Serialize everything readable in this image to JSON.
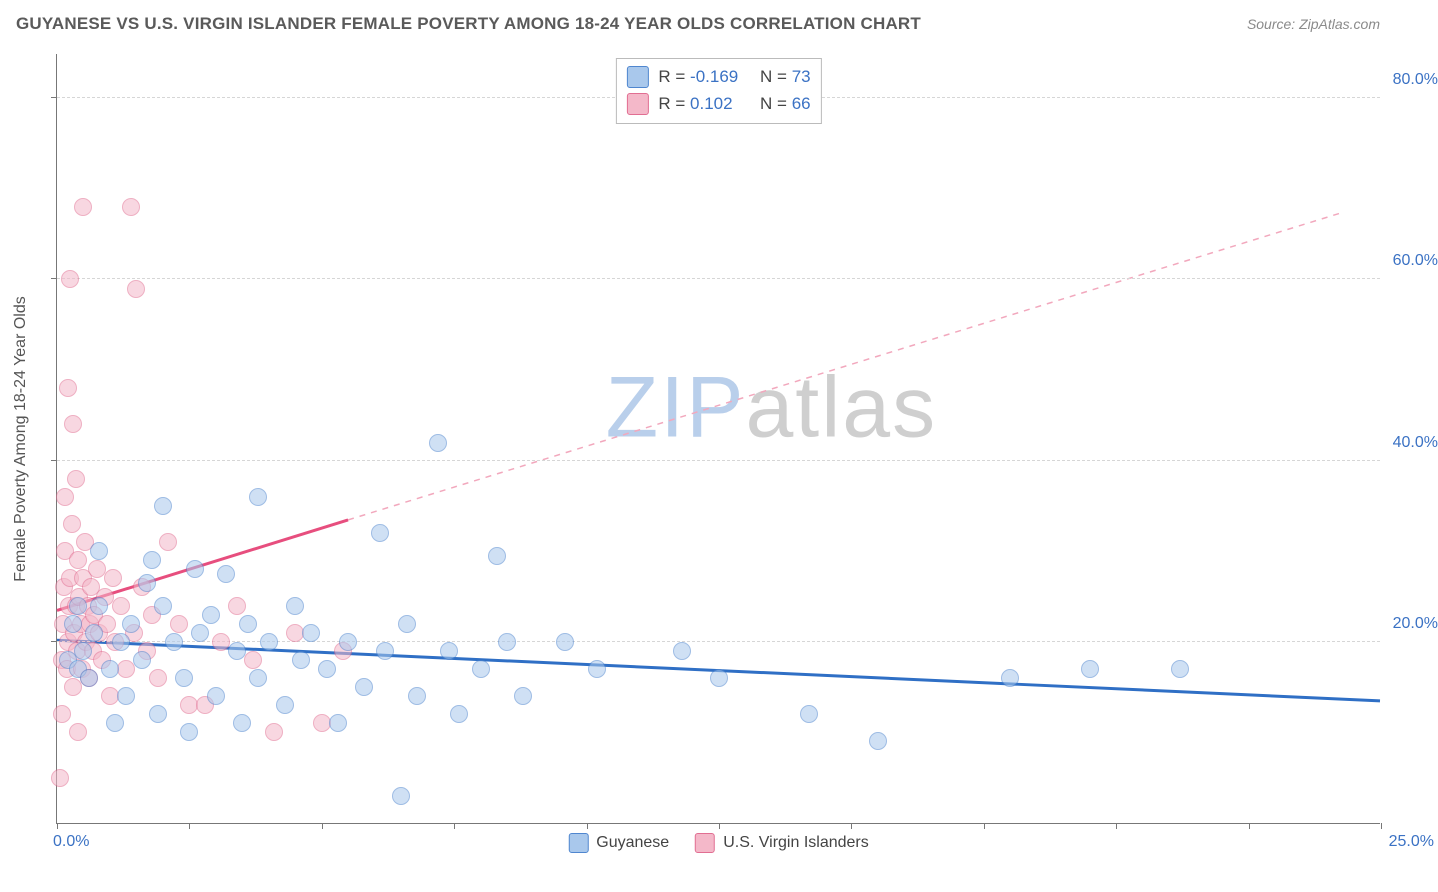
{
  "header": {
    "title": "GUYANESE VS U.S. VIRGIN ISLANDER FEMALE POVERTY AMONG 18-24 YEAR OLDS CORRELATION CHART",
    "source_prefix": "Source: ",
    "source_name": "ZipAtlas.com"
  },
  "chart": {
    "type": "scatter",
    "y_axis_title": "Female Poverty Among 18-24 Year Olds",
    "xlim": [
      0,
      25
    ],
    "ylim": [
      0,
      85
    ],
    "x_tick_step": 2.5,
    "x_min_label": "0.0%",
    "x_max_label": "25.0%",
    "y_ticks": [
      20,
      40,
      60,
      80
    ],
    "y_tick_labels": [
      "20.0%",
      "40.0%",
      "60.0%",
      "80.0%"
    ],
    "grid_color": "#d6d6d6",
    "axis_color": "#777777",
    "tick_label_color": "#3b72c4",
    "background_color": "#ffffff",
    "dot_radius": 9,
    "dot_border_width": 1.4,
    "watermark_text_parts": [
      "ZIP",
      "atlas"
    ],
    "watermark_colors": [
      "#b9cfeb",
      "#cfcfcf"
    ],
    "series": [
      {
        "name": "Guyanese",
        "fill": "#a9c8ec",
        "fill_opacity": 0.55,
        "stroke": "#4f86cf",
        "r_value": "-0.169",
        "n_value": "73",
        "trend": {
          "x1": 0,
          "y1": 20.2,
          "x2": 25,
          "y2": 13.5,
          "color": "#2f6fc5",
          "width": 3,
          "dash": "none"
        },
        "points": [
          [
            0.2,
            18
          ],
          [
            0.3,
            22
          ],
          [
            0.4,
            17
          ],
          [
            0.4,
            24
          ],
          [
            0.5,
            19
          ],
          [
            0.6,
            16
          ],
          [
            0.7,
            21
          ],
          [
            0.8,
            24
          ],
          [
            0.8,
            30
          ],
          [
            1.0,
            17
          ],
          [
            1.1,
            11
          ],
          [
            1.2,
            20
          ],
          [
            1.3,
            14
          ],
          [
            1.4,
            22
          ],
          [
            1.6,
            18
          ],
          [
            1.7,
            26.5
          ],
          [
            1.8,
            29
          ],
          [
            1.9,
            12
          ],
          [
            2.0,
            35
          ],
          [
            2.0,
            24
          ],
          [
            2.2,
            20
          ],
          [
            2.4,
            16
          ],
          [
            2.5,
            10
          ],
          [
            2.6,
            28
          ],
          [
            2.7,
            21
          ],
          [
            2.9,
            23
          ],
          [
            3.0,
            14
          ],
          [
            3.2,
            27.5
          ],
          [
            3.4,
            19
          ],
          [
            3.5,
            11
          ],
          [
            3.6,
            22
          ],
          [
            3.8,
            36
          ],
          [
            3.8,
            16
          ],
          [
            4.0,
            20
          ],
          [
            4.3,
            13
          ],
          [
            4.5,
            24
          ],
          [
            4.6,
            18
          ],
          [
            4.8,
            21
          ],
          [
            5.1,
            17
          ],
          [
            5.3,
            11
          ],
          [
            5.5,
            20
          ],
          [
            5.8,
            15
          ],
          [
            6.1,
            32
          ],
          [
            6.2,
            19
          ],
          [
            6.5,
            3
          ],
          [
            6.6,
            22
          ],
          [
            6.8,
            14
          ],
          [
            7.2,
            42
          ],
          [
            7.4,
            19
          ],
          [
            7.6,
            12
          ],
          [
            8.0,
            17
          ],
          [
            8.3,
            29.5
          ],
          [
            8.5,
            20
          ],
          [
            8.8,
            14
          ],
          [
            9.6,
            20
          ],
          [
            10.2,
            17
          ],
          [
            11.8,
            19
          ],
          [
            12.5,
            16
          ],
          [
            14.2,
            12
          ],
          [
            15.5,
            9
          ],
          [
            18.0,
            16
          ],
          [
            19.5,
            17
          ],
          [
            21.2,
            17
          ]
        ]
      },
      {
        "name": "U.S. Virgin Islanders",
        "fill": "#f4b8c9",
        "fill_opacity": 0.55,
        "stroke": "#e16e92",
        "r_value": "0.102",
        "n_value": "66",
        "trend_solid": {
          "x1": 0,
          "y1": 23.5,
          "x2": 5.5,
          "y2": 33.5,
          "color": "#e74e7e",
          "width": 3
        },
        "trend_dash": {
          "x1": 5.5,
          "y1": 33.5,
          "x2": 24.3,
          "y2": 67.5,
          "color": "#f2a8bd",
          "width": 1.5
        },
        "points": [
          [
            0.05,
            5
          ],
          [
            0.1,
            12
          ],
          [
            0.1,
            18
          ],
          [
            0.12,
            22
          ],
          [
            0.14,
            26
          ],
          [
            0.15,
            30
          ],
          [
            0.15,
            36
          ],
          [
            0.18,
            17
          ],
          [
            0.2,
            48
          ],
          [
            0.2,
            20
          ],
          [
            0.22,
            24
          ],
          [
            0.25,
            60
          ],
          [
            0.25,
            27
          ],
          [
            0.28,
            33
          ],
          [
            0.3,
            15
          ],
          [
            0.3,
            44
          ],
          [
            0.32,
            21
          ],
          [
            0.35,
            38
          ],
          [
            0.35,
            24
          ],
          [
            0.38,
            19
          ],
          [
            0.4,
            29
          ],
          [
            0.4,
            10
          ],
          [
            0.42,
            25
          ],
          [
            0.45,
            22
          ],
          [
            0.48,
            17
          ],
          [
            0.5,
            68
          ],
          [
            0.5,
            27
          ],
          [
            0.52,
            31
          ],
          [
            0.55,
            20
          ],
          [
            0.58,
            24
          ],
          [
            0.6,
            16
          ],
          [
            0.62,
            22
          ],
          [
            0.65,
            26
          ],
          [
            0.68,
            19
          ],
          [
            0.7,
            23
          ],
          [
            0.75,
            28
          ],
          [
            0.8,
            21
          ],
          [
            0.85,
            18
          ],
          [
            0.9,
            25
          ],
          [
            0.95,
            22
          ],
          [
            1.0,
            14
          ],
          [
            1.05,
            27
          ],
          [
            1.1,
            20
          ],
          [
            1.2,
            24
          ],
          [
            1.3,
            17
          ],
          [
            1.4,
            68
          ],
          [
            1.45,
            21
          ],
          [
            1.5,
            59
          ],
          [
            1.6,
            26
          ],
          [
            1.7,
            19
          ],
          [
            1.8,
            23
          ],
          [
            1.9,
            16
          ],
          [
            2.1,
            31
          ],
          [
            2.3,
            22
          ],
          [
            2.5,
            13
          ],
          [
            2.8,
            13
          ],
          [
            3.1,
            20
          ],
          [
            3.4,
            24
          ],
          [
            3.7,
            18
          ],
          [
            4.1,
            10
          ],
          [
            4.5,
            21
          ],
          [
            5.0,
            11
          ],
          [
            5.4,
            19
          ]
        ]
      }
    ],
    "bottom_legend": [
      {
        "label": "Guyanese",
        "fill": "#a9c8ec",
        "stroke": "#4f86cf"
      },
      {
        "label": "U.S. Virgin Islanders",
        "fill": "#f4b8c9",
        "stroke": "#e16e92"
      }
    ],
    "stats_legend_value_color": "#3b72c4"
  }
}
